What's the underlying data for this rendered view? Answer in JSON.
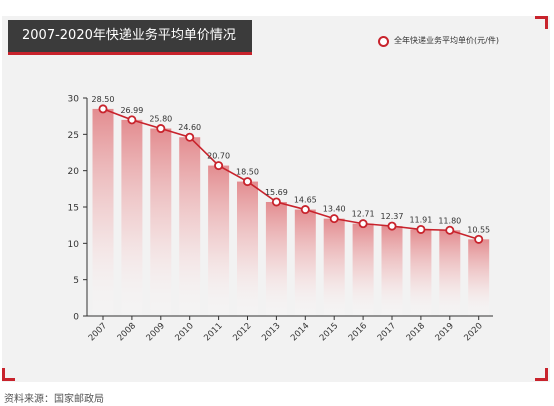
{
  "chart_data": {
    "type": "area",
    "title": "2007-2020年快递业务平均单价情况",
    "categories": [
      "2007",
      "2008",
      "2009",
      "2010",
      "2011",
      "2012",
      "2013",
      "2014",
      "2015",
      "2016",
      "2017",
      "2018",
      "2019",
      "2020"
    ],
    "series": [
      {
        "name": "全年快递业务平均单价(元/件)",
        "values": [
          28.5,
          26.99,
          25.8,
          24.6,
          20.7,
          18.5,
          15.69,
          14.65,
          13.4,
          12.71,
          12.37,
          11.91,
          11.8,
          10.55
        ]
      }
    ],
    "value_labels": [
      "28.50",
      "26.99",
      "25.80",
      "24.60",
      "20.70",
      "18.50",
      "15.69",
      "14.65",
      "13.40",
      "12.71",
      "12.37",
      "11.91",
      "11.80",
      "10.55"
    ],
    "y_ticks": [
      "0",
      "5",
      "10",
      "15",
      "20",
      "25",
      "30"
    ],
    "ylim": [
      0,
      30
    ],
    "xlabel": "",
    "ylabel": "",
    "legend_position": "top-right",
    "grid": false,
    "colors": {
      "accent": "#c8232c",
      "title_bg": "#3b3b3b",
      "panel_bg": "#f2f2f2"
    }
  },
  "source_note": "资料来源：国家邮政局"
}
